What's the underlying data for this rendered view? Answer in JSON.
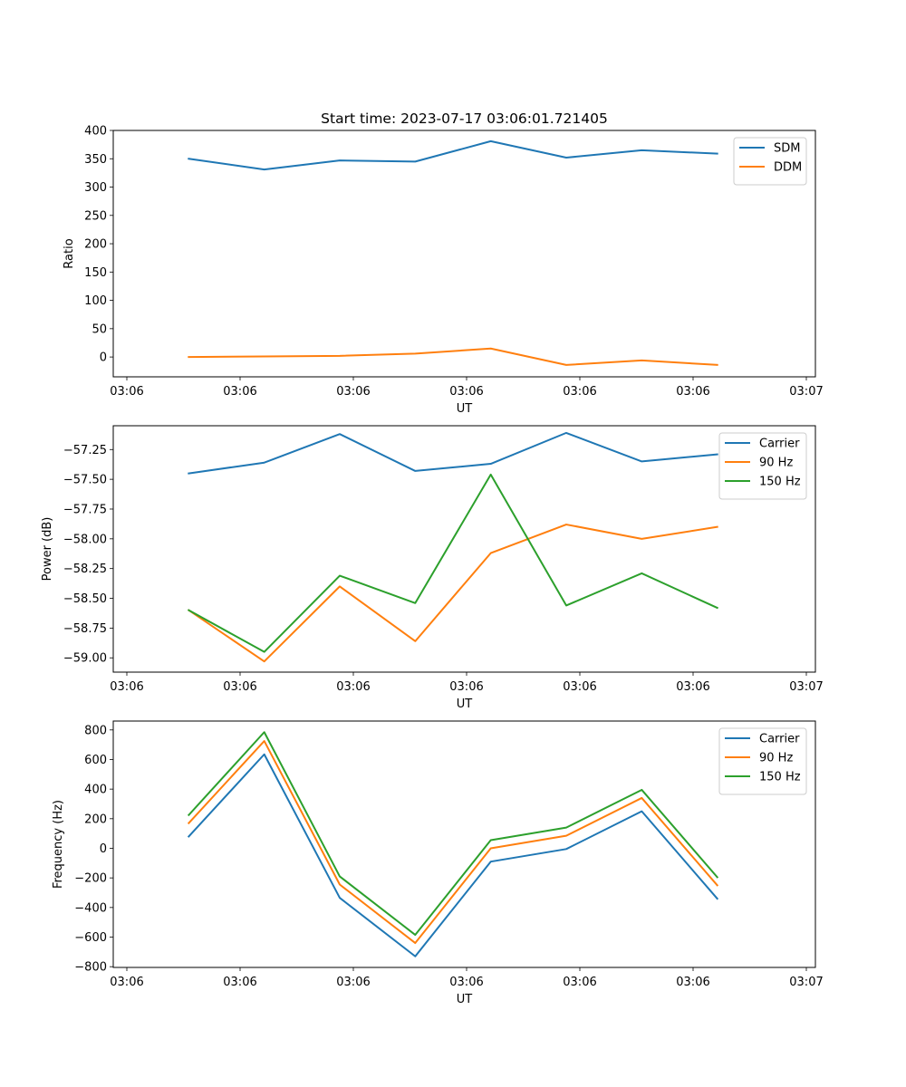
{
  "chart_data": [
    {
      "type": "line",
      "title": "Start time: 2023-07-17 03:06:01.721405",
      "xlabel": "UT",
      "ylabel": "Ratio",
      "xlim": [
        0,
        9.3
      ],
      "ylim": [
        -35,
        400
      ],
      "x_ticks": [
        0.18,
        1.68,
        3.18,
        4.68,
        6.18,
        7.68,
        9.18
      ],
      "x_tick_labels": [
        "03:06",
        "03:06",
        "03:06",
        "03:06",
        "03:06",
        "03:06",
        "03:07"
      ],
      "y_ticks": [
        0,
        50,
        100,
        150,
        200,
        250,
        300,
        350,
        400
      ],
      "y_tick_labels": [
        "0",
        "50",
        "100",
        "150",
        "200",
        "250",
        "300",
        "350",
        "400"
      ],
      "legend_position": "top-right",
      "x": [
        1,
        2,
        3,
        4,
        5,
        6,
        7,
        8
      ],
      "series": [
        {
          "name": "SDM",
          "color": "#1f77b4",
          "values": [
            350,
            331,
            347,
            345,
            381,
            352,
            365,
            359
          ]
        },
        {
          "name": "DDM",
          "color": "#ff7f0e",
          "values": [
            0,
            1,
            2,
            6,
            15,
            -14,
            -6,
            -14
          ]
        }
      ]
    },
    {
      "type": "line",
      "title": "",
      "xlabel": "UT",
      "ylabel": "Power (dB)",
      "xlim": [
        0,
        9.3
      ],
      "ylim": [
        -59.12,
        -57.05
      ],
      "x_ticks": [
        0.18,
        1.68,
        3.18,
        4.68,
        6.18,
        7.68,
        9.18
      ],
      "x_tick_labels": [
        "03:06",
        "03:06",
        "03:06",
        "03:06",
        "03:06",
        "03:06",
        "03:07"
      ],
      "y_ticks": [
        -59.0,
        -58.75,
        -58.5,
        -58.25,
        -58.0,
        -57.75,
        -57.5,
        -57.25
      ],
      "y_tick_labels": [
        "−59.00",
        "−58.75",
        "−58.50",
        "−58.25",
        "−58.00",
        "−57.75",
        "−57.50",
        "−57.25"
      ],
      "legend_position": "top-right",
      "x": [
        1,
        2,
        3,
        4,
        5,
        6,
        7,
        8
      ],
      "series": [
        {
          "name": "Carrier",
          "color": "#1f77b4",
          "values": [
            -57.45,
            -57.36,
            -57.12,
            -57.43,
            -57.37,
            -57.11,
            -57.35,
            -57.29
          ]
        },
        {
          "name": "90 Hz",
          "color": "#ff7f0e",
          "values": [
            -58.6,
            -59.03,
            -58.4,
            -58.86,
            -58.12,
            -57.88,
            -58.0,
            -57.9
          ]
        },
        {
          "name": "150 Hz",
          "color": "#2ca02c",
          "values": [
            -58.6,
            -58.95,
            -58.31,
            -58.54,
            -57.46,
            -58.56,
            -58.29,
            -58.58
          ]
        }
      ]
    },
    {
      "type": "line",
      "title": "",
      "xlabel": "UT",
      "ylabel": "Frequency (Hz)",
      "xlim": [
        0,
        9.3
      ],
      "ylim": [
        -805,
        860
      ],
      "x_ticks": [
        0.18,
        1.68,
        3.18,
        4.68,
        6.18,
        7.68,
        9.18
      ],
      "x_tick_labels": [
        "03:06",
        "03:06",
        "03:06",
        "03:06",
        "03:06",
        "03:06",
        "03:07"
      ],
      "y_ticks": [
        -800,
        -600,
        -400,
        -200,
        0,
        200,
        400,
        600,
        800
      ],
      "y_tick_labels": [
        "−800",
        "−600",
        "−400",
        "−200",
        "0",
        "200",
        "400",
        "600",
        "800"
      ],
      "legend_position": "top-right",
      "x": [
        1,
        2,
        3,
        4,
        5,
        6,
        7,
        8
      ],
      "series": [
        {
          "name": "Carrier",
          "color": "#1f77b4",
          "values": [
            80,
            635,
            -335,
            -730,
            -90,
            -5,
            250,
            -340
          ]
        },
        {
          "name": "90 Hz",
          "color": "#ff7f0e",
          "values": [
            170,
            725,
            -245,
            -640,
            0,
            85,
            340,
            -250
          ]
        },
        {
          "name": "150 Hz",
          "color": "#2ca02c",
          "values": [
            225,
            785,
            -190,
            -585,
            55,
            140,
            395,
            -195
          ]
        }
      ]
    }
  ]
}
